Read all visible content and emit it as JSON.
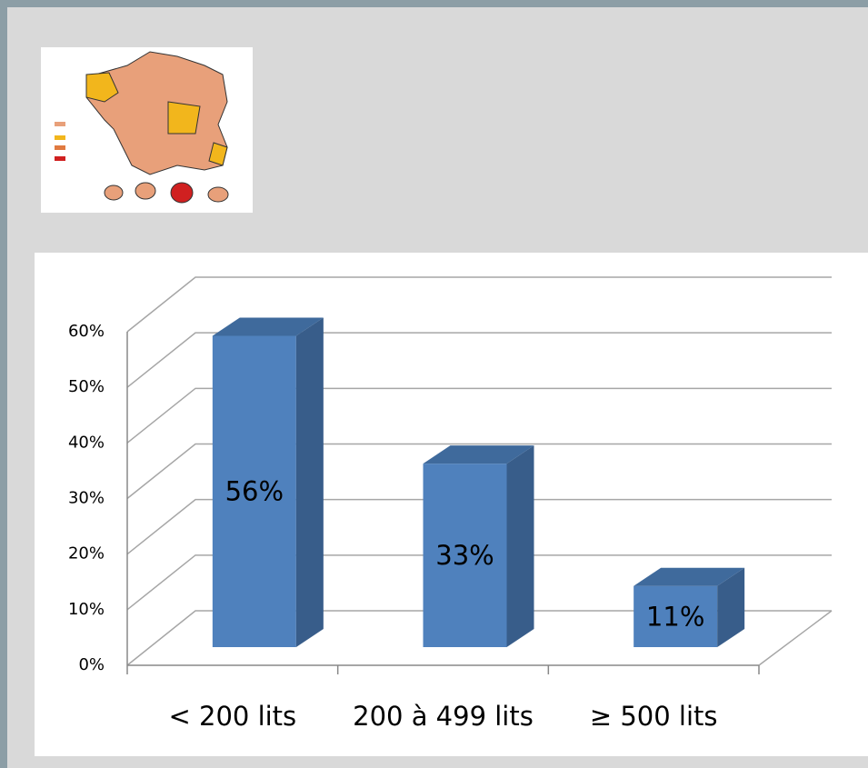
{
  "chart_data": {
    "type": "bar3d",
    "categories": [
      "< 200 lits",
      "200 à 499 lits",
      "≥ 500 lits"
    ],
    "values": [
      56,
      33,
      11
    ],
    "value_labels": [
      "56%",
      "33%",
      "11%"
    ],
    "color": "#4f81bd",
    "ylim": [
      0,
      60
    ],
    "yticks": [
      {
        "value": 0,
        "label": "0%"
      },
      {
        "value": 10,
        "label": "10%"
      },
      {
        "value": 20,
        "label": "20%"
      },
      {
        "value": 30,
        "label": "30%"
      },
      {
        "value": 40,
        "label": "40%"
      },
      {
        "value": 50,
        "label": "50%"
      },
      {
        "value": 60,
        "label": "60%"
      }
    ],
    "grid": true
  }
}
